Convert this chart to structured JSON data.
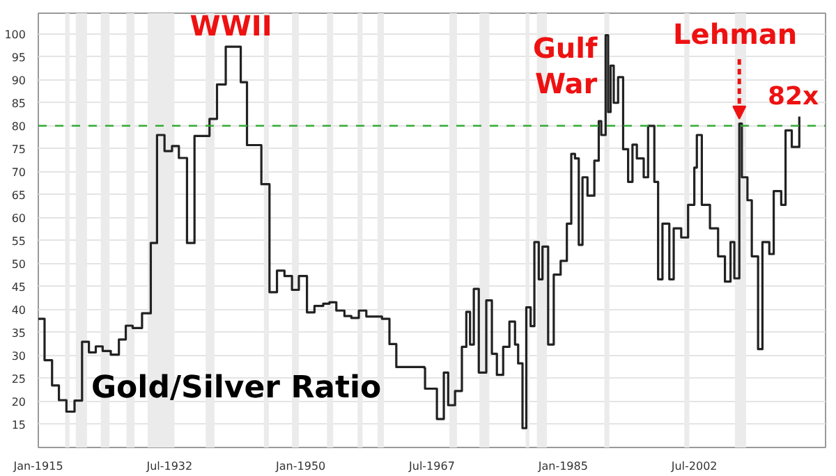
{
  "chart_data": {
    "type": "step",
    "xlim": [
      "1915-01",
      "2020-01"
    ],
    "ylim": [
      10,
      104.5
    ],
    "xticks": [
      {
        "value": "1915-01",
        "label": "Jan-1915"
      },
      {
        "value": "1932-07",
        "label": "Jul-1932"
      },
      {
        "value": "1950-01",
        "label": "Jan-1950"
      },
      {
        "value": "1967-07",
        "label": "Jul-1967"
      },
      {
        "value": "1985-01",
        "label": "Jan-1985"
      },
      {
        "value": "2002-07",
        "label": "Jul-2002"
      }
    ],
    "yticks": [
      15,
      20,
      25,
      30,
      35,
      40,
      45,
      50,
      55,
      60,
      65,
      70,
      75,
      80,
      85,
      90,
      95,
      100
    ],
    "grid": "y",
    "marker": "none",
    "line_style": "solid",
    "series": [
      {
        "color": "#222222",
        "x": [
          "1915-01",
          "1915-11",
          "1916-11",
          "1917-10",
          "1918-10",
          "1919-11",
          "1920-11",
          "1921-10",
          "1922-09",
          "1923-08",
          "1924-09",
          "1925-10",
          "1926-09",
          "1927-08",
          "1928-11",
          "1930-01",
          "1930-11",
          "1931-11",
          "1932-11",
          "1933-10",
          "1934-11",
          "1935-11",
          "1937-11",
          "1938-11",
          "1940-01",
          "1942-01",
          "1942-11",
          "1944-10",
          "1945-11",
          "1946-11",
          "1947-11",
          "1948-11",
          "1949-10",
          "1950-11",
          "1951-11",
          "1953-01",
          "1953-11",
          "1954-10",
          "1955-11",
          "1956-10",
          "1957-10",
          "1958-10",
          "1959-10",
          "1960-11",
          "1961-11",
          "1962-10",
          "1966-07",
          "1966-08",
          "1968-03",
          "1969-02",
          "1969-09",
          "1970-08",
          "1971-07",
          "1972-02",
          "1972-08",
          "1973-02",
          "1973-10",
          "1974-10",
          "1975-07",
          "1976-03",
          "1977-01",
          "1977-11",
          "1978-08",
          "1979-01",
          "1979-08",
          "1980-02",
          "1980-09",
          "1981-03",
          "1981-10",
          "1982-04",
          "1983-01",
          "1983-10",
          "1984-09",
          "1985-07",
          "1986-02",
          "1986-08",
          "1987-02",
          "1987-08",
          "1988-04",
          "1989-03",
          "1989-10",
          "1990-02",
          "1990-09",
          "1991-01",
          "1991-05",
          "1991-10",
          "1992-05",
          "1993-01",
          "1993-09",
          "1994-04",
          "1994-11",
          "1995-10",
          "1996-05",
          "1997-03",
          "1997-09",
          "1998-04",
          "1999-03",
          "1999-10",
          "2000-10",
          "2001-09",
          "2002-07",
          "2002-11",
          "2003-07",
          "2004-08",
          "2005-09",
          "2006-08",
          "2007-05",
          "2007-11",
          "2008-07",
          "2008-11",
          "2009-08",
          "2010-03",
          "2011-01",
          "2011-08",
          "2012-07",
          "2013-02",
          "2014-02",
          "2014-09",
          "2015-07",
          "2016-07"
        ],
        "values": [
          38,
          29,
          23.5,
          20.3,
          17.8,
          20.2,
          33,
          30.7,
          32,
          31,
          30.2,
          33.5,
          36.5,
          36,
          39.2,
          54.5,
          78,
          74.5,
          75.6,
          73,
          54.5,
          77.8,
          81.5,
          89,
          97.2,
          89.5,
          75.8,
          67.3,
          43.8,
          48.5,
          47.3,
          44.3,
          47.3,
          39.4,
          40.8,
          41.3,
          41.6,
          39.8,
          38.6,
          38.2,
          39.8,
          38.5,
          38.5,
          38,
          32.5,
          27.5,
          27.3,
          22.8,
          16.2,
          26.3,
          19.2,
          22.3,
          31.9,
          39.5,
          32.4,
          44.5,
          26.3,
          42,
          30.4,
          25.8,
          31.9,
          37.4,
          32.4,
          28.3,
          14.2,
          40.5,
          36.4,
          54.7,
          46.6,
          53.7,
          32.4,
          47.6,
          50.6,
          58.7,
          73.9,
          72.9,
          54.1,
          68.8,
          64.8,
          72.4,
          81,
          78,
          99.7,
          83,
          93.1,
          85,
          90.6,
          74.9,
          67.8,
          75.9,
          72.9,
          68.8,
          80,
          67.8,
          46.6,
          58.7,
          46.6,
          57.7,
          55.7,
          62.8,
          70.9,
          78,
          62.8,
          57.7,
          51.6,
          46.1,
          54.7,
          46.8,
          80.5,
          68.8,
          63.8,
          51.6,
          31.4,
          54.7,
          52.1,
          65.8,
          62.8,
          79,
          75.4,
          82
        ]
      }
    ],
    "ref_lines": [
      {
        "axis": "y",
        "value": 80,
        "color": "#33aa33",
        "line_style": "dashed"
      }
    ],
    "bands": [
      {
        "axis": "x",
        "from": "1918-08",
        "to": "1919-03",
        "color": "#ebebeb"
      },
      {
        "axis": "x",
        "from": "1920-01",
        "to": "1921-07",
        "color": "#ebebeb"
      },
      {
        "axis": "x",
        "from": "1923-05",
        "to": "1924-07",
        "color": "#ebebeb"
      },
      {
        "axis": "x",
        "from": "1926-10",
        "to": "1927-11",
        "color": "#ebebeb"
      },
      {
        "axis": "x",
        "from": "1929-08",
        "to": "1933-03",
        "color": "#ebebeb"
      },
      {
        "axis": "x",
        "from": "1937-05",
        "to": "1938-07",
        "color": "#ebebeb"
      },
      {
        "axis": "x",
        "from": "1945-02",
        "to": "1945-10",
        "color": "#ebebeb"
      },
      {
        "axis": "x",
        "from": "1948-11",
        "to": "1949-10",
        "color": "#ebebeb"
      },
      {
        "axis": "x",
        "from": "1953-07",
        "to": "1954-05",
        "color": "#ebebeb"
      },
      {
        "axis": "x",
        "from": "1957-08",
        "to": "1958-04",
        "color": "#ebebeb"
      },
      {
        "axis": "x",
        "from": "1960-04",
        "to": "1961-02",
        "color": "#ebebeb"
      },
      {
        "axis": "x",
        "from": "1969-11",
        "to": "1970-11",
        "color": "#ebebeb"
      },
      {
        "axis": "x",
        "from": "1973-11",
        "to": "1975-03",
        "color": "#ebebeb"
      },
      {
        "axis": "x",
        "from": "1980-01",
        "to": "1980-07",
        "color": "#ebebeb"
      },
      {
        "axis": "x",
        "from": "1981-07",
        "to": "1982-11",
        "color": "#ebebeb"
      },
      {
        "axis": "x",
        "from": "1990-07",
        "to": "1991-03",
        "color": "#ebebeb"
      },
      {
        "axis": "x",
        "from": "2001-03",
        "to": "2001-11",
        "color": "#ebebeb"
      },
      {
        "axis": "x",
        "from": "2007-12",
        "to": "2009-06",
        "color": "#ebebeb"
      }
    ],
    "annotations": [
      {
        "text": "WWII",
        "x": "1942-01",
        "y": 97.2
      },
      {
        "text": "Gulf\nWar",
        "x": "1990-09",
        "y": 99.7
      },
      {
        "text": "Lehman",
        "x": "2008-07",
        "y": 80.5
      },
      {
        "text": "82x",
        "x": "2016-07",
        "y": 82
      },
      "Gold/Silver Ratio"
    ]
  }
}
